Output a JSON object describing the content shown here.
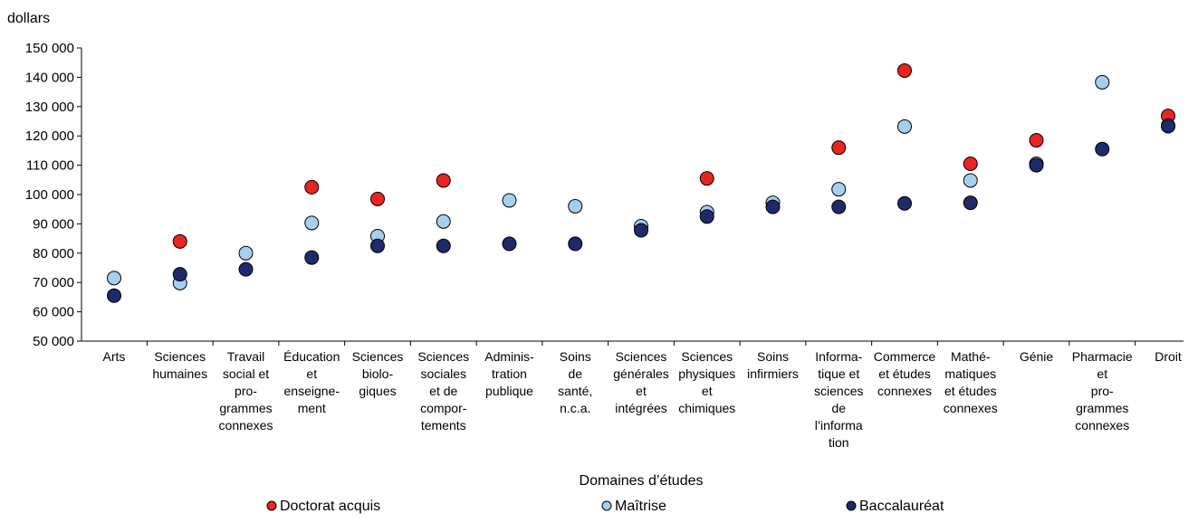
{
  "chart_data": {
    "type": "scatter",
    "ylabel": "dollars",
    "xlabel": "Domaines d’études",
    "ylim": [
      50000,
      150000
    ],
    "yticks": [
      50000,
      60000,
      70000,
      80000,
      90000,
      100000,
      110000,
      120000,
      130000,
      140000,
      150000
    ],
    "ytick_labels": [
      "50 000",
      "60 000",
      "70 000",
      "80 000",
      "90 000",
      "100 000",
      "110 000",
      "120 000",
      "130 000",
      "140 000",
      "150 000"
    ],
    "grid": false,
    "legend_position": "bottom",
    "categories": [
      [
        "Arts"
      ],
      [
        "Sciences",
        "humaines"
      ],
      [
        "Travail",
        "social et",
        "pro-",
        "grammes",
        "connexes"
      ],
      [
        "Éducation",
        "et",
        "enseigne-",
        "ment"
      ],
      [
        "Sciences",
        "biolo-",
        "giques"
      ],
      [
        "Sciences",
        "sociales",
        "et de",
        "compor-",
        "tements"
      ],
      [
        "Adminis-",
        "tration",
        "publique"
      ],
      [
        "Soins",
        "de",
        "santé,",
        "n.c.a."
      ],
      [
        "Sciences",
        "générales",
        "et",
        "intégrées"
      ],
      [
        "Sciences",
        "physiques",
        "et",
        "chimiques"
      ],
      [
        "Soins",
        "infirmiers"
      ],
      [
        "Informa-",
        "tique et",
        "sciences",
        "de",
        "l’informa",
        "tion"
      ],
      [
        "Commerce",
        "et études",
        "connexes"
      ],
      [
        "Mathé-",
        "matiques",
        "et études",
        "connexes"
      ],
      [
        "Génie"
      ],
      [
        "Pharmacie",
        "et",
        "pro-",
        "grammes",
        "connexes"
      ],
      [
        "Droit"
      ]
    ],
    "series": [
      {
        "name": "Doctorat acquis",
        "color": "#e8251f",
        "values": [
          null,
          84000,
          null,
          102500,
          98500,
          104800,
          null,
          null,
          null,
          105500,
          null,
          116000,
          142300,
          110500,
          118500,
          null,
          126800
        ]
      },
      {
        "name": "Maîtrise",
        "color": "#a6cfee",
        "values": [
          71500,
          69800,
          80000,
          90300,
          85800,
          90800,
          98000,
          96000,
          89200,
          94000,
          97200,
          101800,
          123200,
          104800,
          110500,
          138300,
          123500
        ]
      },
      {
        "name": "Baccalauréat",
        "color": "#1f2a6b",
        "values": [
          65500,
          72800,
          74500,
          78500,
          82500,
          82500,
          83200,
          83200,
          87800,
          92500,
          95800,
          95800,
          97000,
          97200,
          110000,
          115500,
          123300
        ]
      }
    ]
  }
}
